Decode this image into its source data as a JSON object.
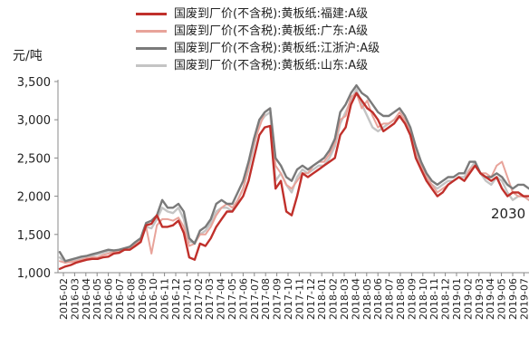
{
  "chart_data": {
    "type": "line",
    "ylabel": "元/吨",
    "ylim": [
      1000,
      3500
    ],
    "yticks": [
      "1,000",
      "1,500",
      "2,000",
      "2,500",
      "3,000",
      "3,500"
    ],
    "ytick_values": [
      1000,
      1500,
      2000,
      2500,
      3000,
      3500
    ],
    "grid": false,
    "legend_position": "top",
    "x_ticks": [
      "2016-02",
      "2016-03",
      "2016-04",
      "2016-05",
      "2016-06",
      "2016-07",
      "2016-08",
      "2016-09",
      "2016-10",
      "2016-11",
      "2016-12",
      "2017-01",
      "2017-02",
      "2017-03",
      "2017-04",
      "2017-05",
      "2017-06",
      "2017-07",
      "2017-08",
      "2017-09",
      "2017-10",
      "2017-11",
      "2017-12",
      "2018-01",
      "2018-02",
      "2018-03",
      "2018-04",
      "2018-05",
      "2018-06",
      "2018-07",
      "2018-08",
      "2018-09",
      "2018-10",
      "2018-11",
      "2018-12",
      "2019-01",
      "2019-02",
      "2019-03",
      "2019-04",
      "2019-05",
      "2019-06",
      "2019-07"
    ],
    "annotation": "2030",
    "series": [
      {
        "name": "国废到厂价(不含税):黄板纸:福建:A级",
        "color": "#c0302b",
        "width": 2.4,
        "values": [
          1050,
          1080,
          1100,
          1130,
          1150,
          1170,
          1180,
          1180,
          1200,
          1210,
          1250,
          1260,
          1300,
          1300,
          1350,
          1400,
          1620,
          1640,
          1750,
          1600,
          1600,
          1620,
          1680,
          1520,
          1200,
          1170,
          1380,
          1350,
          1450,
          1600,
          1700,
          1800,
          1800,
          1900,
          2000,
          2200,
          2500,
          2800,
          2900,
          2920,
          2100,
          2200,
          1800,
          1750,
          2000,
          2300,
          2250,
          2300,
          2350,
          2400,
          2450,
          2500,
          2800,
          2900,
          3200,
          3350,
          3250,
          3150,
          3100,
          3000,
          2850,
          2900,
          2950,
          3050,
          2950,
          2800,
          2500,
          2350,
          2200,
          2100,
          2000,
          2050,
          2150,
          2200,
          2250,
          2200,
          2300,
          2400,
          2300,
          2250,
          2200,
          2250,
          2100,
          2000,
          2050,
          2050,
          2000,
          2000
        ]
      },
      {
        "name": "国废到厂价(不含税):黄板纸:广东:A级",
        "color": "#e8a39a",
        "width": 2,
        "values": [
          1150,
          1130,
          1140,
          1150,
          1170,
          1190,
          1200,
          1200,
          1230,
          1250,
          1270,
          1280,
          1300,
          1320,
          1380,
          1420,
          1600,
          1250,
          1620,
          1700,
          1700,
          1680,
          1720,
          1600,
          1350,
          1380,
          1500,
          1500,
          1600,
          1750,
          1850,
          1900,
          1850,
          1950,
          2100,
          2400,
          2700,
          2900,
          3100,
          3150,
          2400,
          2300,
          2150,
          2100,
          2200,
          2300,
          2300,
          2400,
          2450,
          2450,
          2550,
          2700,
          3000,
          3050,
          3300,
          3350,
          3150,
          3250,
          3050,
          2900,
          2950,
          2950,
          3000,
          3100,
          3000,
          2850,
          2600,
          2400,
          2250,
          2150,
          2050,
          2100,
          2150,
          2200,
          2250,
          2200,
          2350,
          2400,
          2300,
          2300,
          2250,
          2400,
          2450,
          2250,
          2050,
          2000,
          2000,
          1950
        ]
      },
      {
        "name": "国废到厂价(不含税):黄板纸:江浙沪:A级",
        "color": "#7a7a7a",
        "width": 2.4,
        "values": [
          1270,
          1150,
          1170,
          1190,
          1210,
          1220,
          1240,
          1260,
          1280,
          1300,
          1290,
          1300,
          1320,
          1340,
          1400,
          1450,
          1650,
          1680,
          1750,
          1950,
          1850,
          1850,
          1900,
          1800,
          1450,
          1380,
          1550,
          1600,
          1700,
          1900,
          1950,
          1900,
          1900,
          2050,
          2200,
          2450,
          2750,
          3000,
          3100,
          3150,
          2500,
          2400,
          2250,
          2200,
          2350,
          2400,
          2350,
          2400,
          2450,
          2500,
          2600,
          2750,
          3100,
          3200,
          3350,
          3450,
          3350,
          3300,
          3200,
          3100,
          3050,
          3050,
          3100,
          3150,
          3050,
          2900,
          2650,
          2450,
          2300,
          2200,
          2150,
          2200,
          2250,
          2250,
          2300,
          2300,
          2450,
          2450,
          2300,
          2250,
          2250,
          2300,
          2250,
          2150,
          2100,
          2150,
          2150,
          2100
        ]
      },
      {
        "name": "国废到厂价(不含税):黄板纸:山东:A级",
        "color": "#c4c4c4",
        "width": 2.4,
        "values": [
          1200,
          1130,
          1150,
          1170,
          1190,
          1200,
          1220,
          1240,
          1260,
          1280,
          1280,
          1290,
          1300,
          1320,
          1380,
          1420,
          1600,
          1580,
          1700,
          1850,
          1800,
          1780,
          1850,
          1700,
          1400,
          1400,
          1500,
          1550,
          1650,
          1800,
          1850,
          1850,
          1800,
          1950,
          2100,
          2350,
          2650,
          2950,
          3050,
          3100,
          2200,
          2300,
          2150,
          2050,
          2250,
          2350,
          2300,
          2350,
          2400,
          2400,
          2500,
          2650,
          2950,
          3100,
          3250,
          3400,
          3200,
          3050,
          2900,
          2850,
          2900,
          2950,
          3000,
          3050,
          2950,
          2800,
          2550,
          2350,
          2200,
          2150,
          2100,
          2150,
          2200,
          2200,
          2250,
          2250,
          2350,
          2450,
          2300,
          2200,
          2150,
          2250,
          2200,
          2050,
          1950,
          2000,
          2000,
          1950
        ]
      }
    ]
  }
}
